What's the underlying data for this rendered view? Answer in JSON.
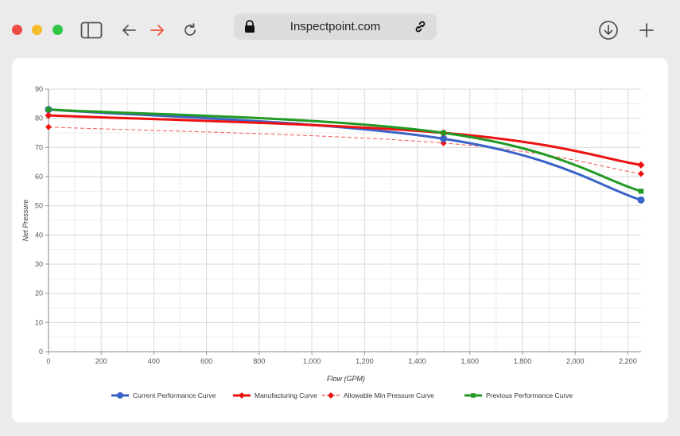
{
  "browser": {
    "url": "Inspectpoint.com",
    "icons": [
      "sidebar-icon",
      "back-arrow-icon",
      "forward-arrow-icon",
      "reload-icon",
      "lock-icon",
      "link-icon",
      "download-icon",
      "new-tab-plus-icon"
    ]
  },
  "chart_data": {
    "type": "line",
    "xlabel": "Flow (GPM)",
    "ylabel": "Net Pressure",
    "xlim": [
      0,
      2250
    ],
    "ylim": [
      0,
      90
    ],
    "xticks": [
      0,
      200,
      400,
      600,
      800,
      1000,
      1200,
      1400,
      1600,
      1800,
      2000,
      2200
    ],
    "xtick_labels": [
      "0",
      "200",
      "400",
      "600",
      "800",
      "1,000",
      "1,200",
      "1,400",
      "1,600",
      "1,800",
      "2,000",
      "2,200"
    ],
    "yticks": [
      0,
      10,
      20,
      30,
      40,
      50,
      60,
      70,
      80,
      90
    ],
    "grid": true,
    "legend_position": "bottom",
    "series": [
      {
        "name": "Current Performance Curve",
        "color": "#3a63c8",
        "marker": "circle",
        "dashed": false,
        "x": [
          0,
          1500,
          2250
        ],
        "y": [
          83,
          73,
          52
        ]
      },
      {
        "name": "Manufacturing Curve",
        "color": "#ee1111",
        "marker": "diamond",
        "dashed": false,
        "x": [
          0,
          1500,
          2250
        ],
        "y": [
          81,
          75,
          64
        ]
      },
      {
        "name": "Allowable Min Pressure Curve",
        "color": "#ee1111",
        "marker": "diamond",
        "dashed": true,
        "x": [
          0,
          1500,
          2250
        ],
        "y": [
          77,
          71.5,
          61
        ]
      },
      {
        "name": "Previous Performance Curve",
        "color": "#229922",
        "marker": "square",
        "dashed": false,
        "x": [
          0,
          1500,
          2250
        ],
        "y": [
          83,
          75,
          55
        ]
      }
    ]
  }
}
